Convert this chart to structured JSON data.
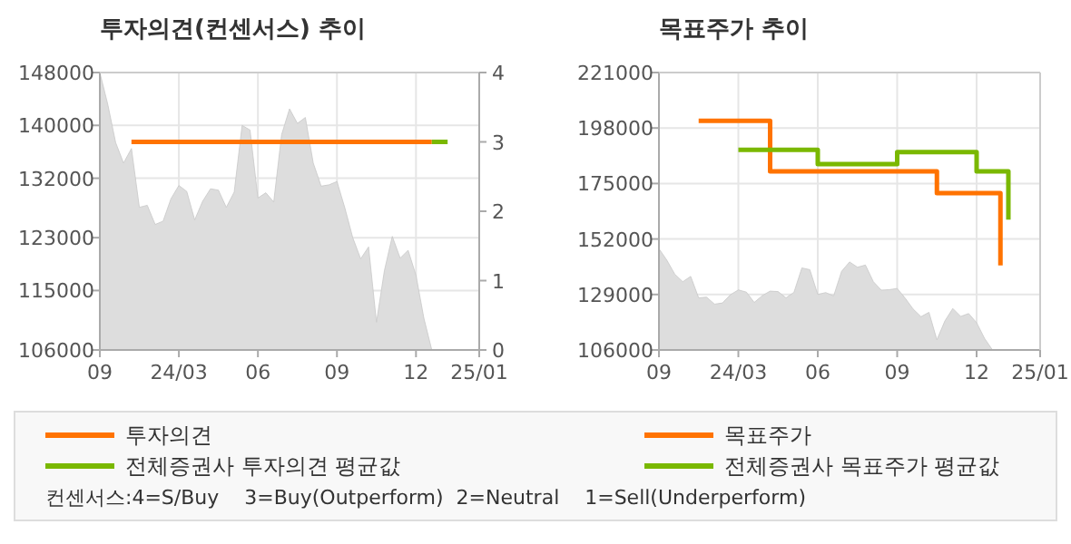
{
  "chart_data": [
    {
      "type": "line",
      "title": "투자의견(컨센서스) 추이",
      "categories": [
        "09",
        null,
        null,
        null,
        null,
        null,
        null,
        null,
        null,
        null,
        "24/03",
        null,
        null,
        null,
        null,
        null,
        null,
        null,
        null,
        null,
        "06",
        null,
        null,
        null,
        null,
        null,
        null,
        null,
        null,
        null,
        "09",
        null,
        null,
        null,
        null,
        null,
        null,
        null,
        null,
        null,
        "12",
        null,
        null,
        null,
        null,
        null,
        null,
        null,
        "25/01"
      ],
      "ylim": [
        106000,
        148000
      ],
      "yticks": [
        106000,
        115000,
        123000,
        132000,
        140000,
        148000
      ],
      "y2lim": [
        0,
        4
      ],
      "y2ticks": [
        0,
        1,
        2,
        3,
        4
      ],
      "grid": true,
      "legend": "bottom",
      "annotations": [
        "컨센서스:4=S/Buy    3=Buy(Outperform)  2=Neutral    1=Sell(Underperform)"
      ],
      "series": [
        {
          "type": "area",
          "color": "#dddddd",
          "values": [
            148000,
            143200,
            137400,
            134300,
            136500,
            127600,
            127900,
            125000,
            125500,
            128900,
            130900,
            130000,
            125700,
            128500,
            130400,
            130200,
            127600,
            129900,
            140000,
            139300,
            129000,
            129800,
            128400,
            138600,
            142500,
            140300,
            141200,
            134300,
            130800,
            131000,
            131500,
            127500,
            123000,
            119800,
            121600,
            110200,
            118000,
            123200,
            119900,
            121100,
            117300,
            110800,
            106000,
            null,
            null,
            null,
            null,
            null,
            null
          ]
        },
        {
          "name": "투자의견",
          "color": "#ff7300",
          "axis": "y2",
          "values": [
            null,
            null,
            null,
            null,
            3,
            3,
            3,
            3,
            3,
            3,
            3,
            3,
            3,
            3,
            3,
            3,
            3,
            3,
            3,
            3,
            3,
            3,
            3,
            3,
            3,
            3,
            3,
            3,
            3,
            3,
            3,
            3,
            3,
            3,
            3,
            3,
            3,
            3,
            3,
            3,
            3,
            3,
            3,
            null,
            null,
            null,
            null,
            null,
            null
          ]
        },
        {
          "name": "전체증권사 투자의견 평균값",
          "color": "#7ab800",
          "axis": "y2",
          "values": [
            null,
            null,
            null,
            null,
            null,
            null,
            null,
            null,
            null,
            null,
            null,
            null,
            null,
            null,
            null,
            null,
            null,
            null,
            null,
            null,
            null,
            null,
            null,
            null,
            null,
            null,
            null,
            null,
            null,
            null,
            null,
            null,
            null,
            null,
            null,
            null,
            null,
            null,
            null,
            null,
            null,
            null,
            3,
            3,
            3,
            null,
            null,
            null,
            null
          ]
        }
      ]
    },
    {
      "type": "step",
      "title": "목표주가 추이",
      "categories": [
        "09",
        null,
        null,
        null,
        null,
        null,
        null,
        null,
        null,
        null,
        "24/03",
        null,
        null,
        null,
        null,
        null,
        null,
        null,
        null,
        null,
        "06",
        null,
        null,
        null,
        null,
        null,
        null,
        null,
        null,
        null,
        "09",
        null,
        null,
        null,
        null,
        null,
        null,
        null,
        null,
        null,
        "12",
        null,
        null,
        null,
        null,
        null,
        null,
        null,
        "25/01"
      ],
      "ylim": [
        106000,
        221000
      ],
      "yticks": [
        106000,
        129000,
        152000,
        175000,
        198000,
        221000
      ],
      "grid": true,
      "legend": "bottom",
      "series": [
        {
          "type": "area",
          "color": "#dddddd",
          "values": [
            148000,
            143200,
            137400,
            134300,
            136500,
            127600,
            127900,
            125000,
            125500,
            128900,
            130900,
            130000,
            125700,
            128500,
            130400,
            130200,
            127600,
            129900,
            140000,
            139300,
            129000,
            129800,
            128400,
            138600,
            142500,
            140300,
            141200,
            134300,
            130800,
            131000,
            131500,
            127500,
            123000,
            119800,
            121600,
            110200,
            118000,
            123200,
            119900,
            121100,
            117300,
            110800,
            106000,
            null,
            null,
            null,
            null,
            null,
            null
          ]
        },
        {
          "name": "목표주가",
          "color": "#ff7300",
          "values": [
            null,
            null,
            null,
            null,
            null,
            201000,
            201000,
            201000,
            201000,
            201000,
            201000,
            201000,
            201000,
            201000,
            180000,
            180000,
            180000,
            180000,
            180000,
            180000,
            180000,
            180000,
            180000,
            180000,
            180000,
            180000,
            180000,
            180000,
            180000,
            180000,
            180000,
            180000,
            180000,
            180000,
            180000,
            171000,
            171000,
            171000,
            171000,
            171000,
            171000,
            171000,
            171000,
            141000,
            null,
            null,
            null,
            null,
            null
          ]
        },
        {
          "name": "전체증권사 목표주가 평균값",
          "color": "#7ab800",
          "values": [
            null,
            null,
            null,
            null,
            null,
            null,
            null,
            null,
            null,
            null,
            189000,
            189000,
            189000,
            189000,
            189000,
            189000,
            189000,
            189000,
            189000,
            189000,
            183000,
            183000,
            183000,
            183000,
            183000,
            183000,
            183000,
            183000,
            183000,
            183000,
            188000,
            188000,
            188000,
            188000,
            188000,
            188000,
            188000,
            188000,
            188000,
            188000,
            180000,
            180000,
            180000,
            180000,
            160000,
            null,
            null,
            null,
            null
          ]
        }
      ]
    }
  ]
}
